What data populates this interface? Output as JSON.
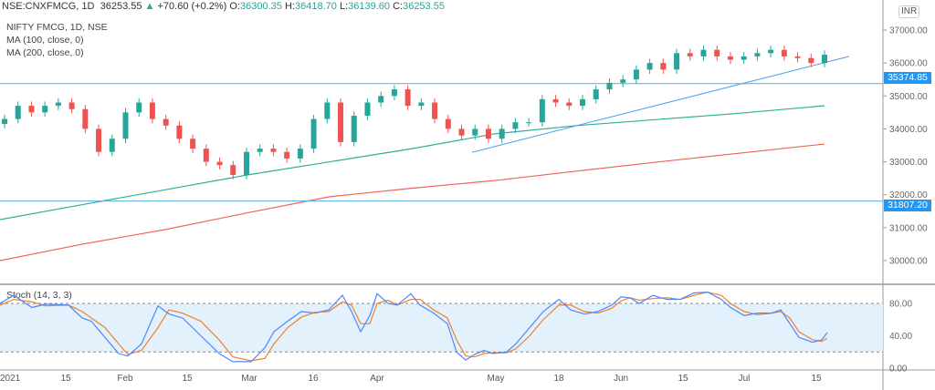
{
  "header": {
    "symbol": "NSE:CNXFMCG, 1D",
    "last": "36253.55",
    "change": "+70.60 (+0.2%)",
    "o_label": "O:",
    "o": "36300.35",
    "h_label": "H:",
    "h": "36418.70",
    "l_label": "L:",
    "l": "36139.60",
    "c_label": "C:",
    "c": "36253.55"
  },
  "currency": "INR",
  "colors": {
    "up": "#26a69a",
    "down": "#ef5350",
    "ma100": "#2fae96",
    "ma200": "#f0645a",
    "hline": "#5aa9e6",
    "trend": "#4a9ff0",
    "k": "#4f86f7",
    "d": "#f08030",
    "band": "#e3f1fd"
  },
  "chart_data": [
    {
      "type": "candlestick",
      "title": "NIFTY FMCG, 1D, NSE",
      "legend": [
        "MA (100, close, 0)",
        "MA (200, close, 0)"
      ],
      "ylim": [
        29600,
        37100
      ],
      "yticks": [
        "37000.00",
        "36000.00",
        "35000.00",
        "34000.00",
        "33000.00",
        "32000.00",
        "31000.00",
        "30000.00"
      ],
      "ytick_values": [
        37000,
        36000,
        35000,
        34000,
        33000,
        32000,
        31000,
        30000
      ],
      "closes": [
        34300,
        34700,
        34500,
        34700,
        34800,
        34600,
        34000,
        33300,
        33700,
        34500,
        34800,
        34300,
        34100,
        33700,
        33400,
        33000,
        32900,
        32600,
        33300,
        33400,
        33300,
        33100,
        33400,
        34300,
        34800,
        33600,
        34400,
        34800,
        35000,
        35200,
        34700,
        34800,
        34300,
        34000,
        33800,
        34000,
        33700,
        34000,
        34200,
        34200,
        34900,
        34800,
        34700,
        34900,
        35200,
        35400,
        35500,
        35800,
        36000,
        35800,
        36300,
        36200,
        36400,
        36200,
        36100,
        36200,
        36300,
        36400,
        36200,
        36150,
        36000,
        36253.55
      ],
      "ma100": [
        31245,
        31700,
        32150,
        32600,
        33000,
        33400,
        33850,
        34100,
        34290,
        34480,
        34703
      ],
      "ma200": [
        30000,
        30500,
        30940,
        31450,
        31940,
        32200,
        32430,
        32720,
        33000,
        33270,
        33540
      ],
      "hlines": [
        "35374.85",
        "31807.20"
      ],
      "trendline": [
        33290,
        36200
      ]
    },
    {
      "type": "line",
      "title": "Stoch (14, 3, 3)",
      "ylim": [
        0,
        100
      ],
      "yticks": [
        "80.00",
        "40.00",
        "0.00"
      ],
      "bands": [
        20,
        80
      ],
      "x_labels": [
        "2021",
        "15",
        "Feb",
        "15",
        "Mar",
        "16",
        "Apr",
        "May",
        "18",
        "Jun",
        "15",
        "Jul",
        "15"
      ],
      "k": [
        80,
        90,
        75,
        79,
        78,
        62,
        58,
        38,
        18,
        15,
        30,
        77,
        67,
        62,
        40,
        18,
        8,
        8,
        25,
        45,
        58,
        70,
        68,
        72,
        90,
        70,
        45,
        65,
        92,
        80,
        78,
        92,
        78,
        68,
        55,
        20,
        10,
        17,
        22,
        18,
        20,
        30,
        50,
        70,
        85,
        72,
        67,
        70,
        78,
        88,
        87,
        80,
        90,
        85,
        85,
        93,
        94,
        85,
        75,
        65,
        68,
        68,
        72,
        55,
        38,
        32,
        35,
        44
      ],
      "d": [
        78,
        85,
        82,
        77,
        78,
        70,
        62,
        50,
        30,
        17,
        22,
        50,
        72,
        68,
        58,
        35,
        14,
        9,
        12,
        30,
        50,
        63,
        69,
        70,
        82,
        78,
        55,
        55,
        80,
        84,
        78,
        85,
        85,
        72,
        62,
        35,
        15,
        14,
        18,
        19,
        19,
        24,
        40,
        60,
        78,
        78,
        70,
        68,
        74,
        83,
        87,
        84,
        86,
        87,
        85,
        90,
        94,
        90,
        80,
        70,
        66,
        68,
        70,
        62,
        45,
        35,
        33,
        37
      ],
      "kx": [
        0,
        15,
        35,
        50,
        75,
        90,
        100,
        115,
        130,
        140,
        155,
        173,
        185,
        200,
        220,
        240,
        255,
        275,
        290,
        300,
        315,
        330,
        345,
        360,
        375,
        385,
        395,
        405,
        413,
        425,
        435,
        450,
        460,
        475,
        490,
        500,
        510,
        520,
        530,
        540,
        555,
        565,
        580,
        595,
        612,
        625,
        640,
        655,
        670,
        680,
        690,
        700,
        715,
        730,
        745,
        760,
        775,
        790,
        800,
        815,
        830,
        845,
        855,
        865,
        875,
        890,
        900,
        906
      ]
    }
  ]
}
